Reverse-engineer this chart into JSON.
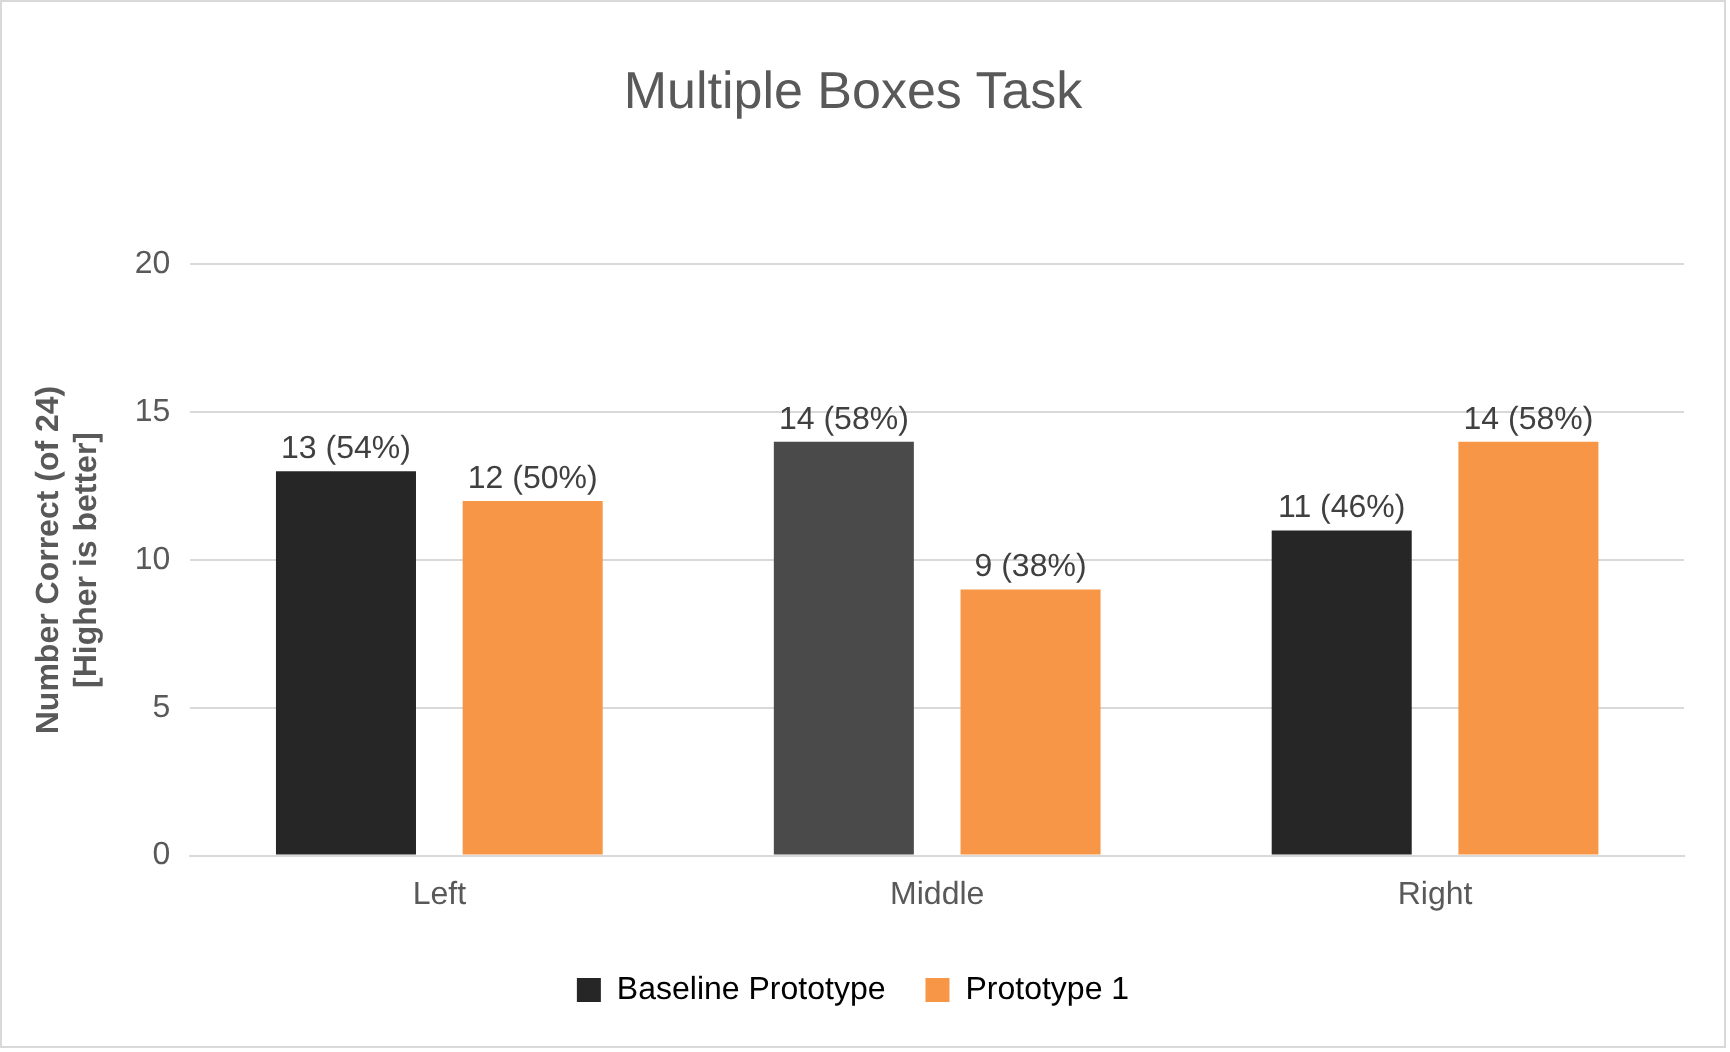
{
  "chart_data": {
    "type": "bar",
    "title": "Multiple Boxes Task",
    "ylabel": "Number Correct (of 24)\n[Higher is better]",
    "categories": [
      "Left",
      "Middle",
      "Right"
    ],
    "series": [
      {
        "name": "Baseline Prototype",
        "color": "#262626",
        "colors": [
          "#262626",
          "#4a4a4a",
          "#262626"
        ],
        "values": [
          13,
          14,
          11
        ],
        "value_labels": [
          "13 (54%)",
          "14 (58%)",
          "11 (46%)"
        ]
      },
      {
        "name": "Prototype 1",
        "color": "#f79646",
        "values": [
          12,
          9,
          14
        ],
        "value_labels": [
          "12 (50%)",
          "9 (38%)",
          "14 (58%)"
        ]
      }
    ],
    "ylim": [
      0,
      20
    ],
    "yticks": [
      0,
      5,
      10,
      15,
      20
    ],
    "grid": "y",
    "legend": "bottom"
  }
}
